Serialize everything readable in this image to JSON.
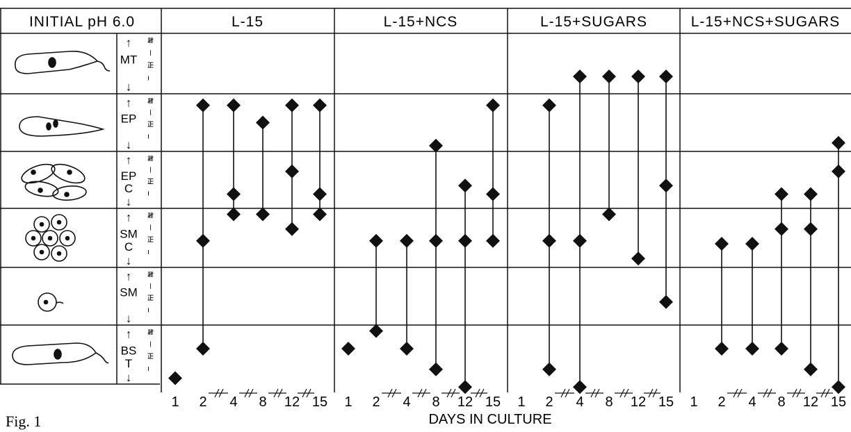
{
  "header": {
    "corner_label": "INITIAL pH 6.0",
    "groups": [
      "L-15",
      "L-15+NCS",
      "L-15+SUGARS",
      "L-15+NCS+SUGARS"
    ]
  },
  "stages": [
    {
      "code_top": "MT",
      "code_bottom": "",
      "icon": "metacyclic-trypomastigote-icon"
    },
    {
      "code_top": "EP",
      "code_bottom": "",
      "icon": "epimastigote-icon"
    },
    {
      "code_top": "EP",
      "code_bottom": "C",
      "icon": "epimastigote-cluster-icon"
    },
    {
      "code_top": "SM",
      "code_bottom": "C",
      "icon": "sphaeromastigote-cluster-icon"
    },
    {
      "code_top": "SM",
      "code_bottom": "",
      "icon": "sphaeromastigote-icon"
    },
    {
      "code_top": "BS",
      "code_bottom": "T",
      "icon": "bloodstream-trypomastigote-icon"
    }
  ],
  "tally_marks": [
    "𝍸",
    "𝍷",
    "𝍶",
    "ı"
  ],
  "day_ticks": [
    "1",
    "2",
    "4",
    "8",
    "12",
    "15"
  ],
  "xlabel": "DAYS IN CULTURE",
  "caption": "Fig. 1",
  "chart_data": {
    "type": "scatter",
    "xlabel": "DAYS IN CULTURE",
    "row_order_top_to_bottom": [
      "MT",
      "EP",
      "EP C",
      "SM C",
      "SM",
      "BS T"
    ],
    "groups": [
      {
        "name": "L-15",
        "days": [
          {
            "day": 1,
            "points": [
              {
                "row": "BS T",
                "level": 0.9
              }
            ]
          },
          {
            "day": 2,
            "points": [
              {
                "row": "EP",
                "level": 0.2
              },
              {
                "row": "SM C",
                "level": 0.55
              },
              {
                "row": "BS T",
                "level": 0.4
              }
            ]
          },
          {
            "day": 4,
            "points": [
              {
                "row": "EP",
                "level": 0.2
              },
              {
                "row": "EP C",
                "level": 0.75
              },
              {
                "row": "SM C",
                "level": 0.1
              }
            ]
          },
          {
            "day": 8,
            "points": [
              {
                "row": "EP",
                "level": 0.5
              },
              {
                "row": "SM C",
                "level": 0.1
              }
            ]
          },
          {
            "day": 12,
            "points": [
              {
                "row": "EP",
                "level": 0.2
              },
              {
                "row": "EP C",
                "level": 0.35
              },
              {
                "row": "SM C",
                "level": 0.35
              }
            ]
          },
          {
            "day": 15,
            "points": [
              {
                "row": "EP",
                "level": 0.2
              },
              {
                "row": "EP C",
                "level": 0.75
              },
              {
                "row": "SM C",
                "level": 0.1
              }
            ]
          }
        ]
      },
      {
        "name": "L-15+NCS",
        "days": [
          {
            "day": 1,
            "points": [
              {
                "row": "BS T",
                "level": 0.4
              }
            ]
          },
          {
            "day": 2,
            "points": [
              {
                "row": "SM C",
                "level": 0.55
              },
              {
                "row": "BS T",
                "level": 0.1
              }
            ]
          },
          {
            "day": 4,
            "points": [
              {
                "row": "SM C",
                "level": 0.55
              },
              {
                "row": "BS T",
                "level": 0.4
              }
            ]
          },
          {
            "day": 8,
            "points": [
              {
                "row": "EP C",
                "level": -0.1
              },
              {
                "row": "SM C",
                "level": 0.55
              },
              {
                "row": "BS T",
                "level": 0.75
              }
            ]
          },
          {
            "day": 12,
            "points": [
              {
                "row": "EP C",
                "level": 0.6
              },
              {
                "row": "SM C",
                "level": 0.55
              },
              {
                "row": "BS T",
                "level": 1.05
              }
            ]
          },
          {
            "day": 15,
            "points": [
              {
                "row": "EP",
                "level": 0.2
              },
              {
                "row": "EP C",
                "level": 0.75
              },
              {
                "row": "SM C",
                "level": 0.55
              }
            ]
          }
        ]
      },
      {
        "name": "L-15+SUGARS",
        "days": [
          {
            "day": 2,
            "points": [
              {
                "row": "EP",
                "level": 0.2
              },
              {
                "row": "SM C",
                "level": 0.55
              },
              {
                "row": "BS T",
                "level": 0.75
              }
            ]
          },
          {
            "day": 4,
            "points": [
              {
                "row": "EP",
                "level": -0.3
              },
              {
                "row": "SM C",
                "level": 0.55
              },
              {
                "row": "BS T",
                "level": 1.05
              }
            ]
          },
          {
            "day": 8,
            "points": [
              {
                "row": "EP",
                "level": -0.3
              },
              {
                "row": "SM C",
                "level": 0.1
              }
            ]
          },
          {
            "day": 12,
            "points": [
              {
                "row": "EP",
                "level": -0.3
              },
              {
                "row": "SM C",
                "level": 0.85
              }
            ]
          },
          {
            "day": 15,
            "points": [
              {
                "row": "EP",
                "level": -0.3
              },
              {
                "row": "EP C",
                "level": 0.6
              },
              {
                "row": "SM",
                "level": 0.6
              }
            ]
          }
        ]
      },
      {
        "name": "L-15+NCS+SUGARS",
        "days": [
          {
            "day": 2,
            "points": [
              {
                "row": "SM C",
                "level": 0.6
              },
              {
                "row": "BS T",
                "level": 0.4
              }
            ]
          },
          {
            "day": 4,
            "points": [
              {
                "row": "SM C",
                "level": 0.6
              },
              {
                "row": "BS T",
                "level": 0.4
              }
            ]
          },
          {
            "day": 8,
            "points": [
              {
                "row": "EP C",
                "level": 0.75
              },
              {
                "row": "SM C",
                "level": 0.35
              },
              {
                "row": "BS T",
                "level": 0.4
              }
            ]
          },
          {
            "day": 12,
            "points": [
              {
                "row": "EP C",
                "level": 0.75
              },
              {
                "row": "SM C",
                "level": 0.35
              },
              {
                "row": "BS T",
                "level": 0.75
              }
            ]
          },
          {
            "day": 15,
            "points": [
              {
                "row": "EP C",
                "level": -0.15
              },
              {
                "row": "EP C",
                "level": 0.35
              },
              {
                "row": "BS T",
                "level": 1.05
              }
            ]
          }
        ]
      }
    ]
  }
}
